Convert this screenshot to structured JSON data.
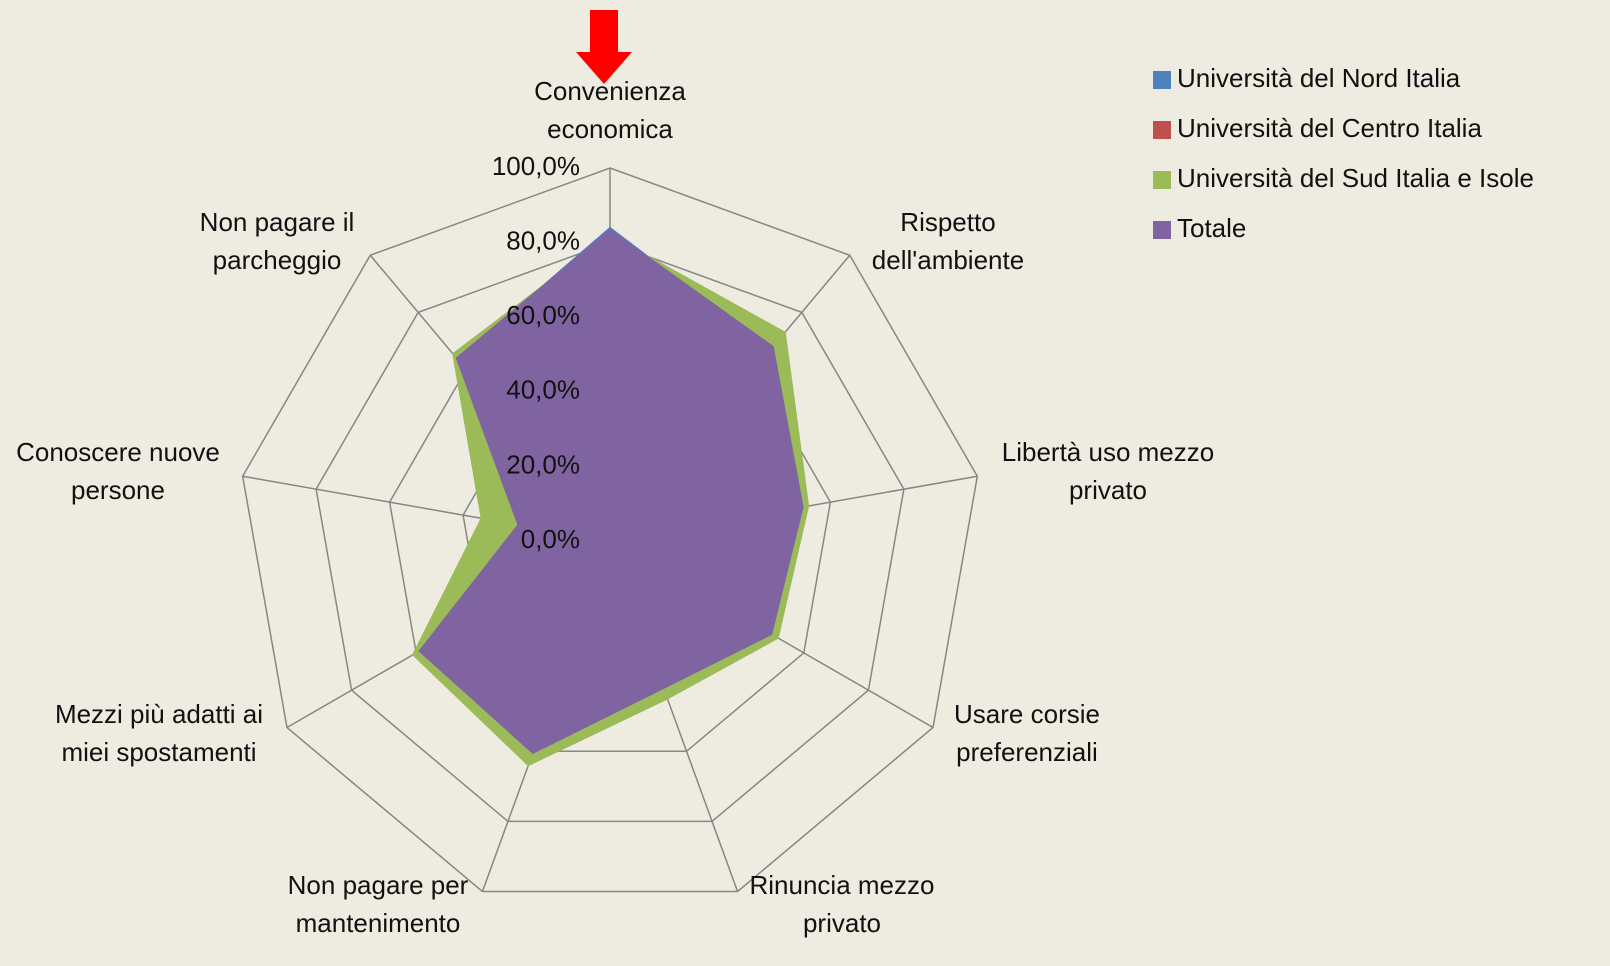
{
  "chart_data": {
    "type": "radar",
    "categories": [
      "Convenienza\neconomica",
      "Rispetto\ndell'ambiente",
      "Libertà uso mezzo\nprivato",
      "Usare corsie\npreferenziali",
      "Rinuncia mezzo\nprivato",
      "Non pagare per\nmantenimento",
      "Mezzi più adatti ai\nmiei spostamenti",
      "Conoscere nuove\npersone",
      "Non pagare il\nparcheggio"
    ],
    "series": [
      {
        "name": "Università del Nord Italia",
        "color": "#4f81bd",
        "values": [
          84,
          67,
          52,
          49.5,
          41.5,
          60,
          58.5,
          24.5,
          63.5
        ]
      },
      {
        "name": "Università del Centro Italia",
        "color": "#c0504d",
        "values": [
          83,
          67,
          52,
          49.5,
          41.5,
          60,
          58.5,
          24.5,
          63.5
        ]
      },
      {
        "name": "Università del Sud Italia e Isole",
        "color": "#9bbb59",
        "values": [
          82,
          73,
          54,
          52,
          45,
          64,
          61,
          35,
          65.5
        ]
      },
      {
        "name": "Totale",
        "color": "#8064a2",
        "values": [
          83.4,
          68,
          52.5,
          50,
          42,
          60.5,
          59,
          25,
          64
        ]
      }
    ],
    "rlim": [
      0,
      100
    ],
    "rticks": [
      {
        "value": 0,
        "label": "0,0%"
      },
      {
        "value": 20,
        "label": "20,0%"
      },
      {
        "value": 40,
        "label": "40,0%"
      },
      {
        "value": 60,
        "label": "60,0%"
      },
      {
        "value": 80,
        "label": "80,0%"
      },
      {
        "value": 100,
        "label": "100,0%"
      }
    ],
    "grid": true,
    "legend": "upper right"
  }
}
